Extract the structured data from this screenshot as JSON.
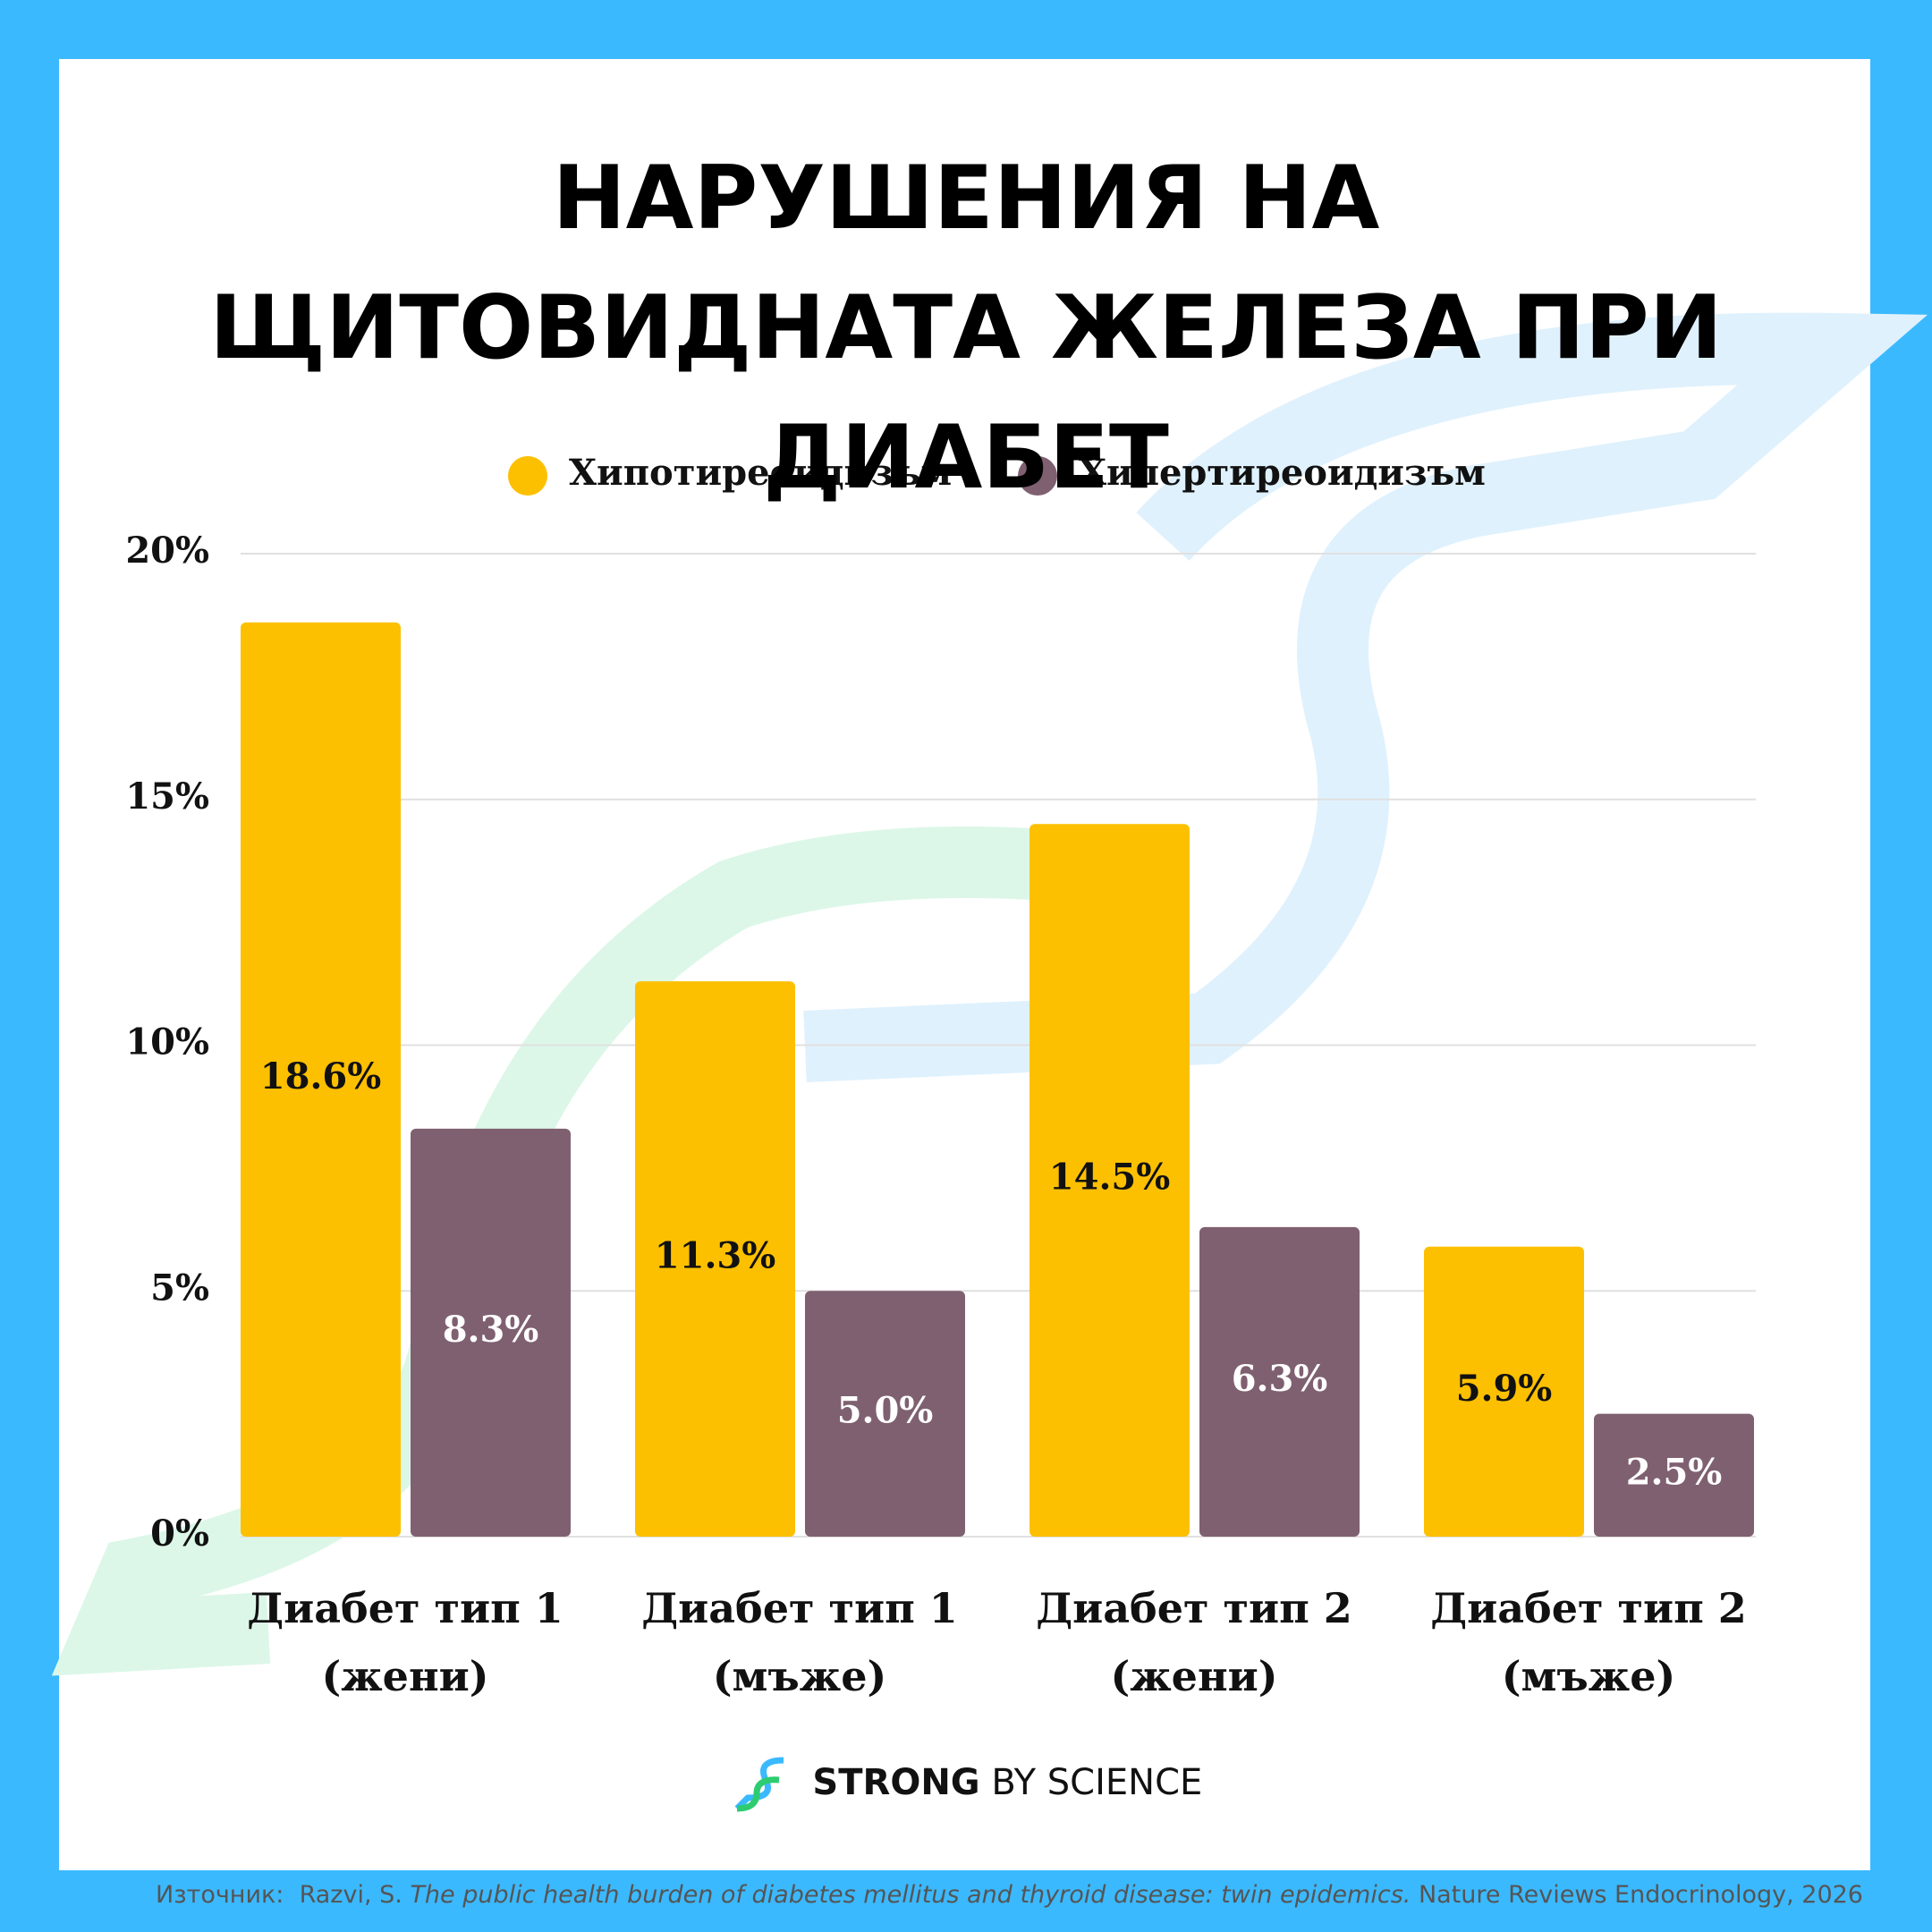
{
  "chart_data": {
    "type": "bar",
    "title": "НАРУШЕНИЯ НА ЩИТОВИДНАТА ЖЕЛЕЗА ПРИ ДИАБЕТ",
    "categories": [
      "Диабет тип 1 (жени)",
      "Диабет тип 1 (мъже)",
      "Диабет тип 2 (жени)",
      "Диабет тип 2 (мъже)"
    ],
    "series": [
      {
        "name": "Хипотиреоидизъм",
        "color": "#fdc000",
        "values": [
          18.6,
          11.3,
          14.5,
          5.9
        ],
        "value_labels": [
          "18.6%",
          "11.3%",
          "14.5%",
          "5.9%"
        ]
      },
      {
        "name": "Хипертиреоидизъм",
        "color": "#7f6070",
        "values": [
          8.3,
          5.0,
          6.3,
          2.5
        ],
        "value_labels": [
          "8.3%",
          "5.0%",
          "6.3%",
          "2.5%"
        ]
      }
    ],
    "ylim": [
      0,
      20
    ],
    "yticks": [
      {
        "value": 0,
        "label": "0%"
      },
      {
        "value": 5,
        "label": "5%"
      },
      {
        "value": 10,
        "label": "10%"
      },
      {
        "value": 15,
        "label": "15%"
      },
      {
        "value": 20,
        "label": "20%"
      }
    ],
    "grid": true,
    "legend": "top"
  },
  "logo": {
    "strong": "STRONG",
    "rest": "BY SCIENCE"
  },
  "source": {
    "label": "Източник:",
    "author": "Razvi, S.",
    "title": "The public health burden of diabetes mellitus and thyroid disease: twin epidemics.",
    "journal": "Nature Reviews Endocrinology, 2026"
  }
}
